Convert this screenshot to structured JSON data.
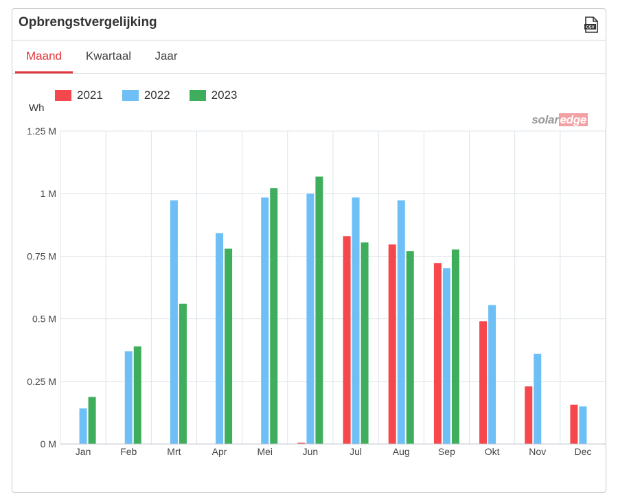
{
  "card": {
    "title": "Opbrengstvergelijking",
    "csv_icon": "csv-download-icon",
    "tabs": [
      {
        "label": "Maand",
        "active": true
      },
      {
        "label": "Kwartaal",
        "active": false
      },
      {
        "label": "Jaar",
        "active": false
      }
    ],
    "unit": "Wh",
    "brand": {
      "part1": "solar",
      "part2": "edge"
    }
  },
  "colors": {
    "2021": "#f5474c",
    "2022": "#6dbff5",
    "2023": "#3fae5c",
    "accent": "#e0353b"
  },
  "chart_data": {
    "type": "bar",
    "categories": [
      "Jan",
      "Feb",
      "Mrt",
      "Apr",
      "Mei",
      "Jun",
      "Jul",
      "Aug",
      "Sep",
      "Okt",
      "Nov",
      "Dec"
    ],
    "series": [
      {
        "name": "2021",
        "values": [
          0,
          0,
          0,
          0,
          0,
          5000,
          830000,
          797000,
          723000,
          490000,
          230000,
          157000
        ]
      },
      {
        "name": "2022",
        "values": [
          142000,
          370000,
          973000,
          842000,
          985000,
          1000000,
          985000,
          973000,
          702000,
          555000,
          360000,
          150000
        ]
      },
      {
        "name": "2023",
        "values": [
          188000,
          390000,
          560000,
          780000,
          1022000,
          1068000,
          805000,
          770000,
          777000,
          0,
          0,
          0
        ]
      }
    ],
    "ylabel": "Wh",
    "yticks": [
      "0 M",
      "0.25 M",
      "0.5 M",
      "0.75 M",
      "1 M",
      "1.25 M"
    ],
    "ylim": [
      0,
      1250000
    ],
    "grid": true,
    "legend_position": "top-left"
  }
}
